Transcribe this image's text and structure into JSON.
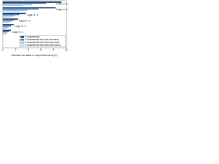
{
  "chart_data": {
    "type": "barh",
    "xlabel": "Standard deviation of output thickness [%]",
    "categories": [
      "Cage nr. 6",
      "Cage nr. 5",
      "Cage nr. 4",
      "Cage nr. 3",
      "Cage nr. 2",
      "Cage nr. 1"
    ],
    "series": [
      {
        "name": "Fundamental",
        "color": "#1f3f7a",
        "values": [
          9.2,
          8.3,
          3.6,
          2.4,
          1.7,
          1.3
        ]
      },
      {
        "name": "Fundamental and 1st harmonic",
        "color": "#4a8fd0",
        "values": [
          6.8,
          5.6,
          2.6,
          1.8,
          1.3,
          1.0
        ]
      },
      {
        "name": "Fundamental and 2nd harmonic",
        "color": "#9ecbf0",
        "values": [
          4.6,
          3.9,
          1.9,
          1.3,
          0.9,
          0.7
        ]
      },
      {
        "name": "Fundamental and first harmonics",
        "color": "#d8eefa",
        "values": [
          3.1,
          2.6,
          1.3,
          0.9,
          0.6,
          0.5
        ]
      }
    ],
    "xlim": [
      0,
      10
    ],
    "xticks": [
      0,
      2,
      4,
      6,
      8,
      10
    ],
    "legend": "lower right"
  }
}
